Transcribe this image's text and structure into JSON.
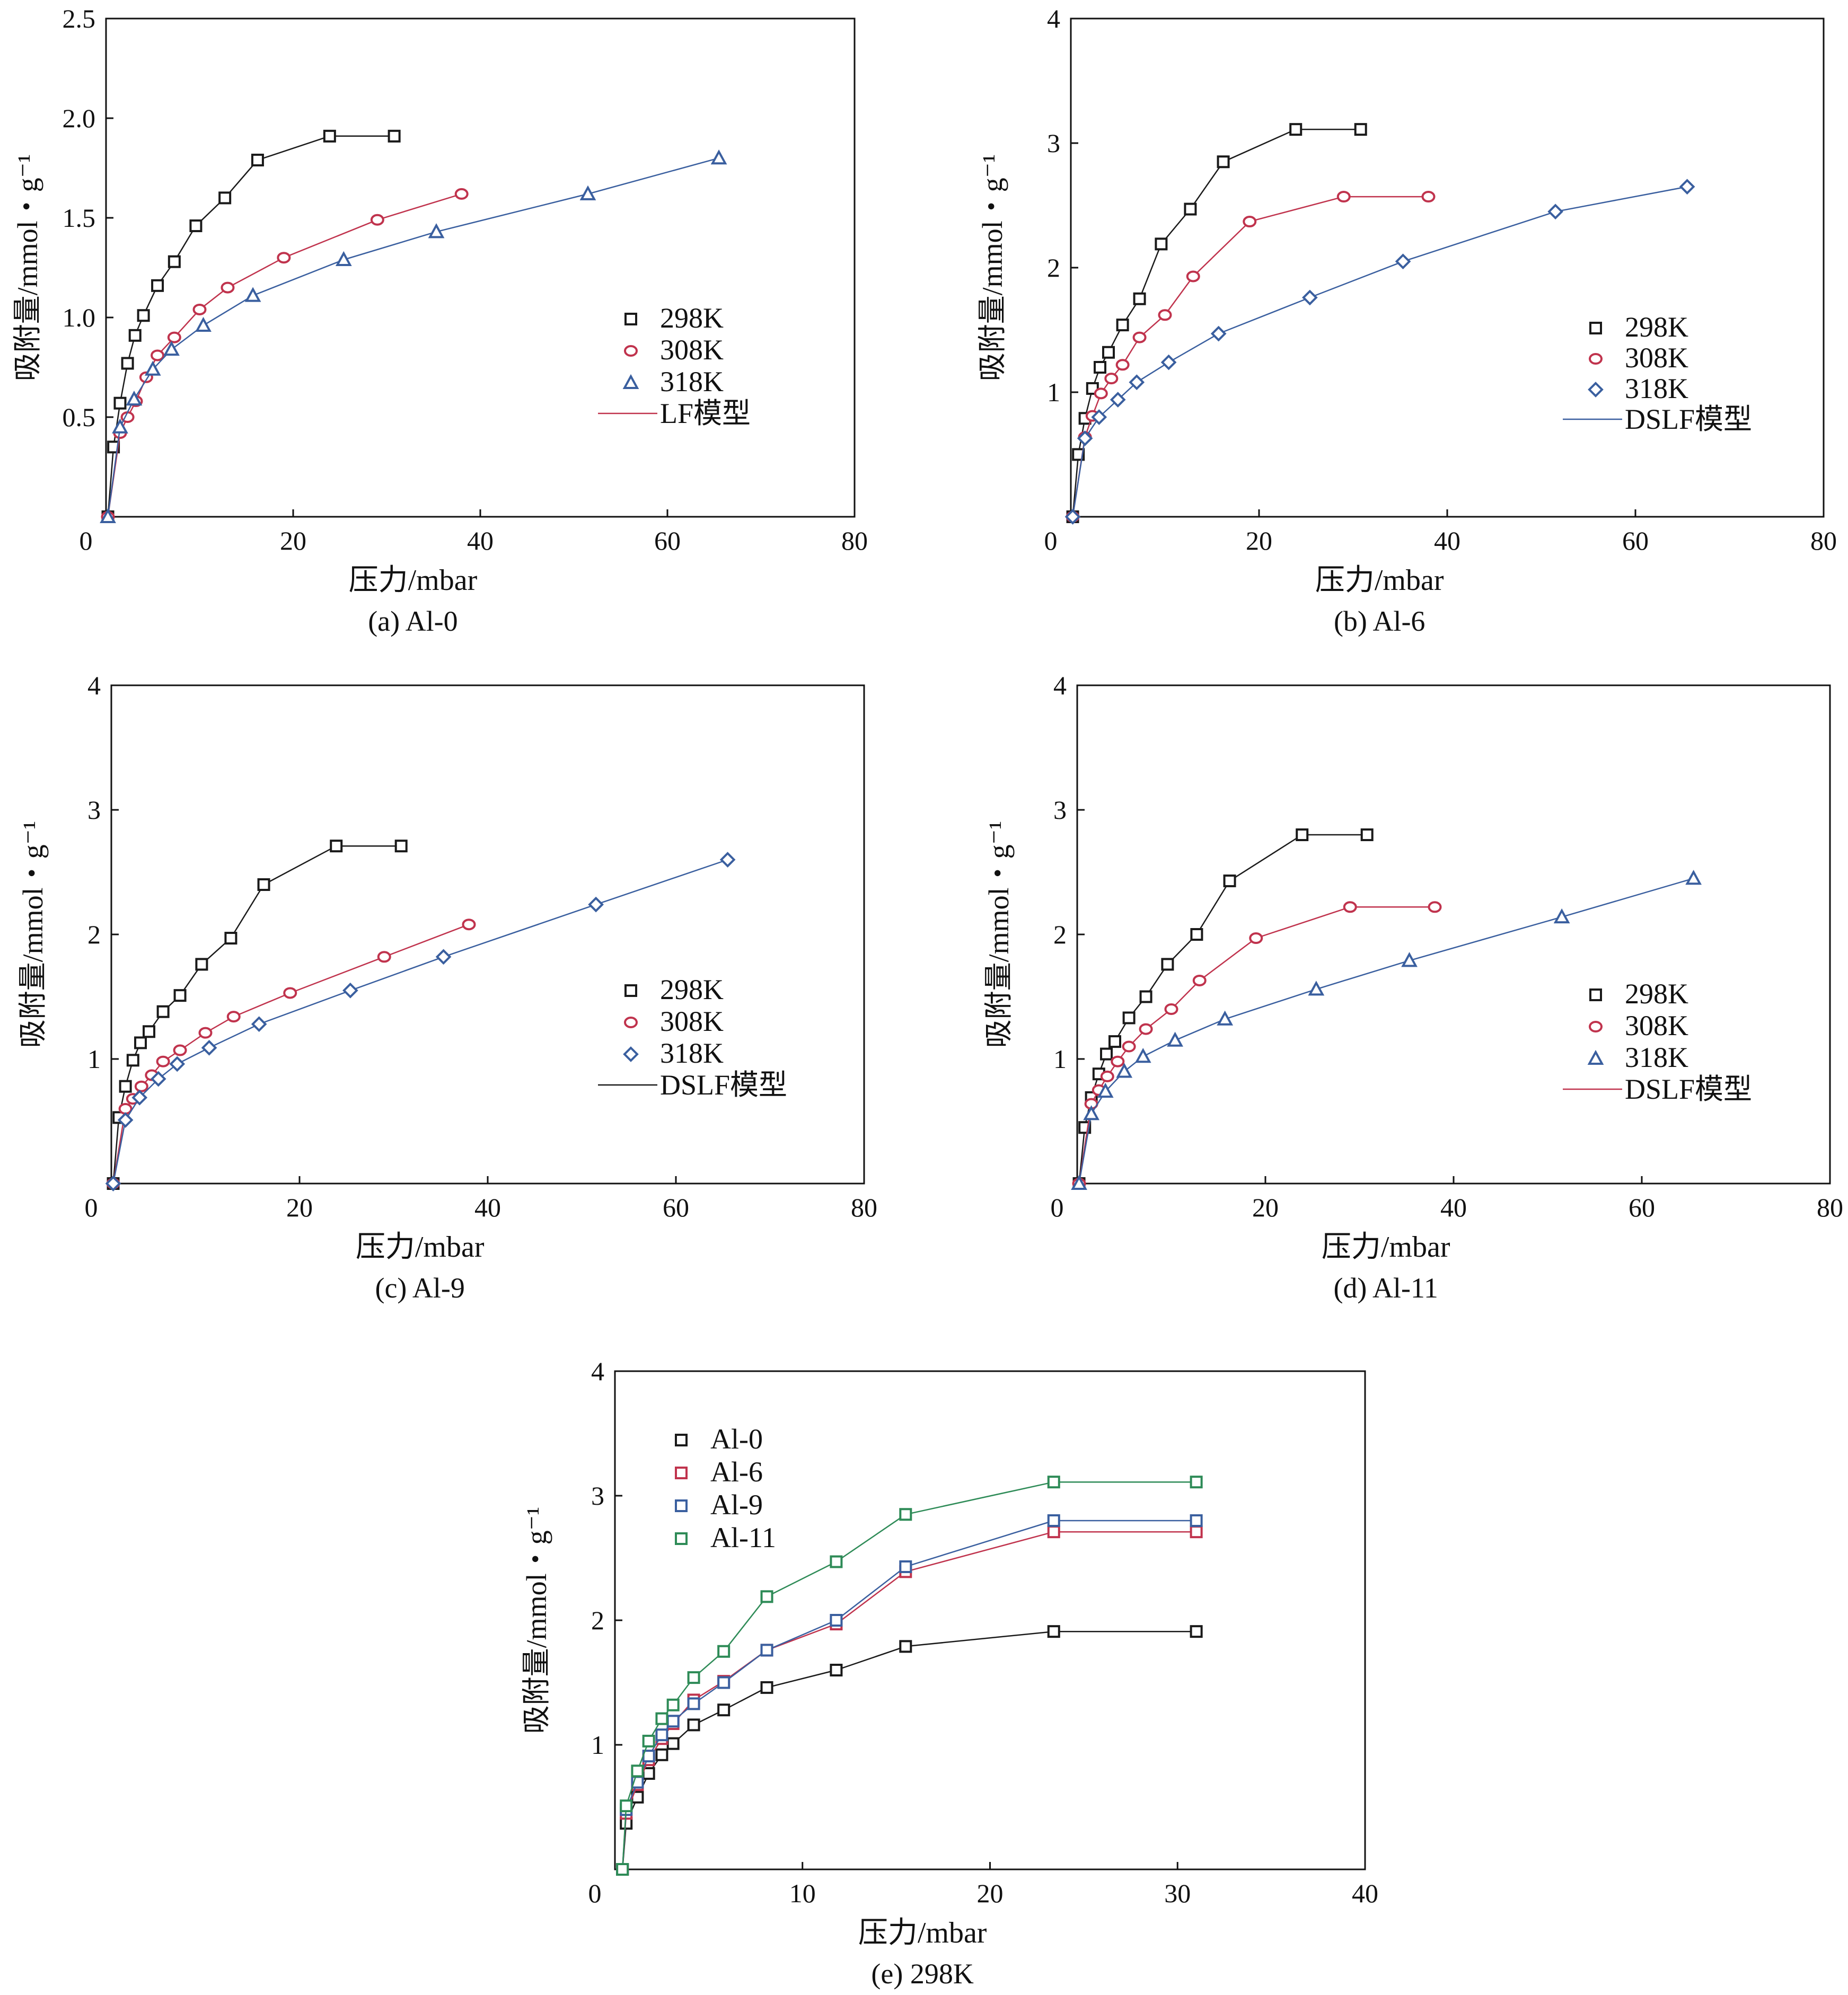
{
  "colors": {
    "black": "#1a1a1a",
    "red": "#c0334d",
    "blue": "#3a5f9f",
    "green": "#2e8b57",
    "frame": "#111111"
  },
  "chart_data": [
    {
      "id": "a",
      "type": "scatter",
      "caption": "(a) Al-0",
      "xlabel": "压力/mbar",
      "ylabel": "吸附量/mmol・g⁻¹",
      "xlim": [
        0,
        80
      ],
      "ylim": [
        0,
        2.5
      ],
      "xticks": [
        0,
        20,
        40,
        60,
        80
      ],
      "yticks": [
        0.5,
        1.0,
        1.5,
        2.0,
        2.5
      ],
      "ytick_labels": [
        "0.5",
        "1.0",
        "1.5",
        "2.0",
        "2.5"
      ],
      "legend_position": "center-right",
      "fit_label": "LF模型",
      "series": [
        {
          "name": "298K",
          "marker": "square",
          "color": "#1a1a1a",
          "x": [
            0.2,
            0.8,
            1.5,
            2.3,
            3.1,
            4.0,
            5.5,
            7.3,
            9.6,
            12.7,
            16.2,
            23.9,
            30.8
          ],
          "y": [
            0.0,
            0.35,
            0.57,
            0.77,
            0.91,
            1.01,
            1.16,
            1.28,
            1.46,
            1.6,
            1.79,
            1.91,
            1.91
          ]
        },
        {
          "name": "308K",
          "marker": "circle",
          "color": "#c0334d",
          "x": [
            0.2,
            1.5,
            2.3,
            3.2,
            4.3,
            5.5,
            7.3,
            10.0,
            13.0,
            19.0,
            29.0,
            38.0
          ],
          "y": [
            0.0,
            0.42,
            0.5,
            0.58,
            0.7,
            0.81,
            0.9,
            1.04,
            1.15,
            1.3,
            1.49,
            1.62
          ]
        },
        {
          "name": "318K",
          "marker": "triangle",
          "color": "#3a5f9f",
          "x": [
            0.2,
            1.5,
            3.0,
            5.0,
            7.0,
            10.4,
            15.7,
            25.4,
            35.3,
            51.5,
            65.5
          ],
          "y": [
            0.0,
            0.45,
            0.59,
            0.74,
            0.84,
            0.96,
            1.11,
            1.29,
            1.43,
            1.62,
            1.8
          ]
        }
      ]
    },
    {
      "id": "b",
      "type": "scatter",
      "caption": "(b) Al-6",
      "xlabel": "压力/mbar",
      "ylabel": "吸附量/mmol・g⁻¹",
      "xlim": [
        0,
        80
      ],
      "ylim": [
        0,
        4
      ],
      "xticks": [
        0,
        20,
        40,
        60,
        80
      ],
      "yticks": [
        1,
        2,
        3,
        4
      ],
      "ytick_labels": [
        "1",
        "2",
        "3",
        "4"
      ],
      "legend_position": "center-right",
      "fit_label": "DSLF模型",
      "series": [
        {
          "name": "298K",
          "marker": "square",
          "color": "#1a1a1a",
          "x": [
            0.2,
            0.8,
            1.5,
            2.3,
            3.1,
            4.0,
            5.5,
            7.3,
            9.6,
            12.7,
            16.2,
            23.9,
            30.8
          ],
          "y": [
            0.0,
            0.5,
            0.79,
            1.03,
            1.2,
            1.32,
            1.54,
            1.75,
            2.19,
            2.47,
            2.85,
            3.11,
            3.11
          ]
        },
        {
          "name": "308K",
          "marker": "circle",
          "color": "#c0334d",
          "x": [
            0.2,
            1.5,
            2.3,
            3.2,
            4.3,
            5.5,
            7.3,
            10.0,
            13.0,
            19.0,
            29.0,
            38.0
          ],
          "y": [
            0.0,
            0.64,
            0.81,
            0.99,
            1.11,
            1.22,
            1.44,
            1.62,
            1.93,
            2.37,
            2.57,
            2.57
          ]
        },
        {
          "name": "318K",
          "marker": "diamond",
          "color": "#3a5f9f",
          "x": [
            0.2,
            1.5,
            3.0,
            5.0,
            7.0,
            10.4,
            15.7,
            25.4,
            35.3,
            51.5,
            65.5
          ],
          "y": [
            0.0,
            0.63,
            0.8,
            0.94,
            1.08,
            1.24,
            1.47,
            1.76,
            2.05,
            2.45,
            2.65
          ]
        }
      ]
    },
    {
      "id": "c",
      "type": "scatter",
      "caption": "(c) Al-9",
      "xlabel": "压力/mbar",
      "ylabel": "吸附量/mmol・g⁻¹",
      "xlim": [
        0,
        80
      ],
      "ylim": [
        0,
        4
      ],
      "xticks": [
        0,
        20,
        40,
        60,
        80
      ],
      "yticks": [
        1,
        2,
        3,
        4
      ],
      "ytick_labels": [
        "1",
        "2",
        "3",
        "4"
      ],
      "legend_position": "center-right",
      "fit_label": "DSLF模型",
      "series": [
        {
          "name": "298K",
          "marker": "square",
          "color": "#1a1a1a",
          "x": [
            0.2,
            0.8,
            1.5,
            2.3,
            3.1,
            4.0,
            5.5,
            7.3,
            9.6,
            12.7,
            16.2,
            23.9,
            30.8
          ],
          "y": [
            0.0,
            0.53,
            0.78,
            0.99,
            1.13,
            1.22,
            1.38,
            1.51,
            1.76,
            1.97,
            2.4,
            2.71,
            2.71
          ]
        },
        {
          "name": "308K",
          "marker": "circle",
          "color": "#c0334d",
          "x": [
            0.2,
            1.5,
            2.3,
            3.2,
            4.3,
            5.5,
            7.3,
            10.0,
            13.0,
            19.0,
            29.0,
            38.0
          ],
          "y": [
            0.0,
            0.6,
            0.68,
            0.78,
            0.87,
            0.98,
            1.07,
            1.21,
            1.34,
            1.53,
            1.82,
            2.08
          ]
        },
        {
          "name": "318K",
          "marker": "diamond",
          "color": "#3a5f9f",
          "x": [
            0.2,
            1.5,
            3.0,
            5.0,
            7.0,
            10.4,
            15.7,
            25.4,
            35.3,
            51.5,
            65.5
          ],
          "y": [
            0.0,
            0.51,
            0.69,
            0.84,
            0.96,
            1.09,
            1.28,
            1.55,
            1.82,
            2.24,
            2.6
          ]
        }
      ]
    },
    {
      "id": "d",
      "type": "scatter",
      "caption": "(d) Al-11",
      "xlabel": "压力/mbar",
      "ylabel": "吸附量/mmol・g⁻¹",
      "xlim": [
        0,
        80
      ],
      "ylim": [
        0,
        4
      ],
      "xticks": [
        0,
        20,
        40,
        60,
        80
      ],
      "yticks": [
        1,
        2,
        3,
        4
      ],
      "ytick_labels": [
        "1",
        "2",
        "3",
        "4"
      ],
      "legend_position": "center-right",
      "fit_label": "DSLF模型",
      "series": [
        {
          "name": "298K",
          "marker": "square",
          "color": "#1a1a1a",
          "x": [
            0.2,
            0.8,
            1.5,
            2.3,
            3.1,
            4.0,
            5.5,
            7.3,
            9.6,
            12.7,
            16.2,
            23.9,
            30.8
          ],
          "y": [
            0.0,
            0.45,
            0.69,
            0.88,
            1.04,
            1.14,
            1.33,
            1.5,
            1.76,
            2.0,
            2.43,
            2.8,
            2.8
          ]
        },
        {
          "name": "308K",
          "marker": "circle",
          "color": "#c0334d",
          "x": [
            0.2,
            1.5,
            2.3,
            3.2,
            4.3,
            5.5,
            7.3,
            10.0,
            13.0,
            19.0,
            29.0,
            38.0
          ],
          "y": [
            0.0,
            0.64,
            0.75,
            0.86,
            0.98,
            1.1,
            1.24,
            1.4,
            1.63,
            1.97,
            2.22,
            2.22
          ]
        },
        {
          "name": "318K",
          "marker": "triangle",
          "color": "#3a5f9f",
          "x": [
            0.2,
            1.5,
            3.0,
            5.0,
            7.0,
            10.4,
            15.7,
            25.4,
            35.3,
            51.5,
            65.5
          ],
          "y": [
            0.0,
            0.56,
            0.74,
            0.9,
            1.02,
            1.15,
            1.32,
            1.56,
            1.79,
            2.14,
            2.45
          ]
        }
      ]
    },
    {
      "id": "e",
      "type": "line",
      "caption": "(e) 298K",
      "xlabel": "压力/mbar",
      "ylabel": "吸附量/mmol・g⁻¹",
      "xlim": [
        0,
        40
      ],
      "ylim": [
        0,
        4
      ],
      "xticks": [
        0,
        10,
        20,
        30,
        40
      ],
      "yticks": [
        1,
        2,
        3,
        4
      ],
      "ytick_labels": [
        "1",
        "2",
        "3",
        "4"
      ],
      "legend_position": "top-left",
      "series": [
        {
          "name": "Al-0",
          "marker": "square",
          "color": "#1a1a1a",
          "x": [
            0.4,
            0.6,
            1.2,
            1.8,
            2.5,
            3.1,
            4.2,
            5.8,
            8.1,
            11.8,
            15.5,
            23.4,
            31.0
          ],
          "y": [
            0.0,
            0.37,
            0.58,
            0.77,
            0.92,
            1.01,
            1.16,
            1.28,
            1.46,
            1.6,
            1.79,
            1.91,
            1.91
          ]
        },
        {
          "name": "Al-6",
          "marker": "square",
          "color": "#c0334d",
          "x": [
            0.4,
            0.6,
            1.2,
            1.8,
            2.5,
            3.1,
            4.2,
            5.8,
            8.1,
            11.8,
            15.5,
            23.4,
            31.0
          ],
          "y": [
            0.0,
            0.45,
            0.68,
            0.88,
            1.05,
            1.17,
            1.36,
            1.51,
            1.76,
            1.97,
            2.39,
            2.71,
            2.71
          ]
        },
        {
          "name": "Al-9",
          "marker": "square",
          "color": "#3a5f9f",
          "x": [
            0.4,
            0.6,
            1.2,
            1.8,
            2.5,
            3.1,
            4.2,
            5.8,
            8.1,
            11.8,
            15.5,
            23.4,
            31.0
          ],
          "y": [
            0.0,
            0.48,
            0.7,
            0.91,
            1.08,
            1.19,
            1.33,
            1.5,
            1.76,
            2.0,
            2.43,
            2.8,
            2.8
          ]
        },
        {
          "name": "Al-11",
          "marker": "square",
          "color": "#2e8b57",
          "x": [
            0.4,
            0.6,
            1.2,
            1.8,
            2.5,
            3.1,
            4.2,
            5.8,
            8.1,
            11.8,
            15.5,
            23.4,
            31.0
          ],
          "y": [
            0.0,
            0.51,
            0.79,
            1.03,
            1.21,
            1.32,
            1.54,
            1.75,
            2.19,
            2.47,
            2.85,
            3.11,
            3.11
          ]
        }
      ]
    }
  ]
}
